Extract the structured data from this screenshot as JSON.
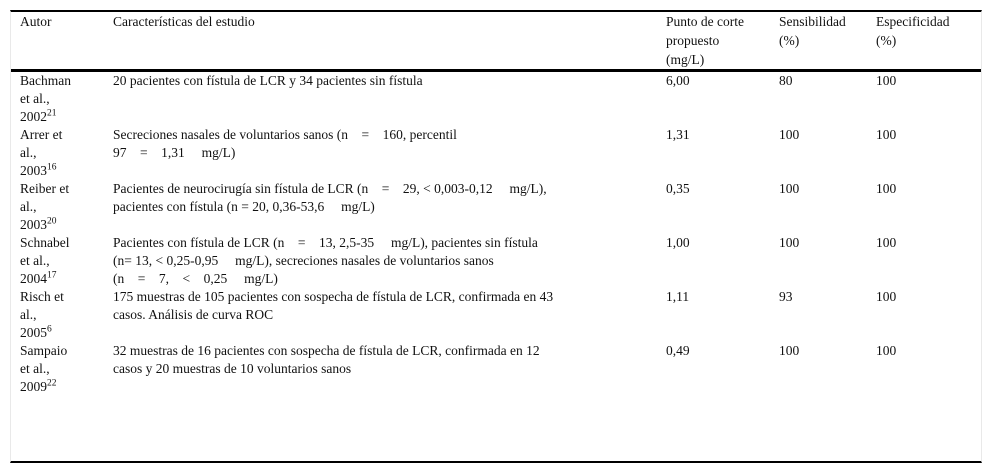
{
  "table": {
    "columns": [
      {
        "id": "autor",
        "label": "Autor"
      },
      {
        "id": "caracteristicas",
        "label": "Características del estudio"
      },
      {
        "id": "punto_corte",
        "label": "Punto de corte\npropuesto\n(mg/L)"
      },
      {
        "id": "sensibilidad",
        "label": "Sensibilidad\n(%)"
      },
      {
        "id": "especificidad",
        "label": "Especificidad\n(%)"
      }
    ],
    "rows": [
      {
        "author_lines": [
          "Bachman",
          "et al.,"
        ],
        "year": "2002",
        "ref": "21",
        "characteristics_lines": [
          "20 pacientes con fístula de LCR y 34 pacientes sin fístula"
        ],
        "cutoff": "6,00",
        "sensitivity": "80",
        "specificity": "100"
      },
      {
        "author_lines": [
          "Arrer et",
          "al.,"
        ],
        "year": "2003",
        "ref": "16",
        "characteristics_lines": [
          "Secreciones nasales de voluntarios sanos (n    =    160, percentil",
          "97    =    1,31     mg/L)"
        ],
        "cutoff": "1,31",
        "sensitivity": "100",
        "specificity": "100"
      },
      {
        "author_lines": [
          "Reiber et",
          "al.,"
        ],
        "year": "2003",
        "ref": "20",
        "characteristics_lines": [
          "Pacientes de neurocirugía sin fístula de LCR (n    =    29, < 0,003-0,12     mg/L),",
          "pacientes con fístula (n = 20, 0,36-53,6     mg/L)"
        ],
        "cutoff": "0,35",
        "sensitivity": "100",
        "specificity": "100"
      },
      {
        "author_lines": [
          "Schnabel",
          "et al.,"
        ],
        "year": "2004",
        "ref": "17",
        "characteristics_lines": [
          "Pacientes con fístula de LCR (n    =    13, 2,5-35     mg/L), pacientes sin fístula",
          "(n= 13, < 0,25-0,95     mg/L), secreciones nasales de voluntarios sanos",
          "(n    =    7,    <    0,25     mg/L)"
        ],
        "cutoff": "1,00",
        "sensitivity": "100",
        "specificity": "100"
      },
      {
        "author_lines": [
          "Risch et",
          "al.,"
        ],
        "year": "2005",
        "ref": "6",
        "characteristics_lines": [
          "175 muestras de 105 pacientes con sospecha de fístula de LCR, confirmada en 43",
          "casos. Análisis de curva ROC"
        ],
        "cutoff": "1,11",
        "sensitivity": "93",
        "specificity": "100"
      },
      {
        "author_lines": [
          "Sampaio",
          "et al.,"
        ],
        "year": "2009",
        "ref": "22",
        "characteristics_lines": [
          "32 muestras de 16 pacientes con sospecha de fístula de LCR, confirmada en 12",
          "casos y 20 muestras de 10 voluntarios sanos"
        ],
        "cutoff": "0,49",
        "sensitivity": "100",
        "specificity": "100"
      }
    ]
  }
}
